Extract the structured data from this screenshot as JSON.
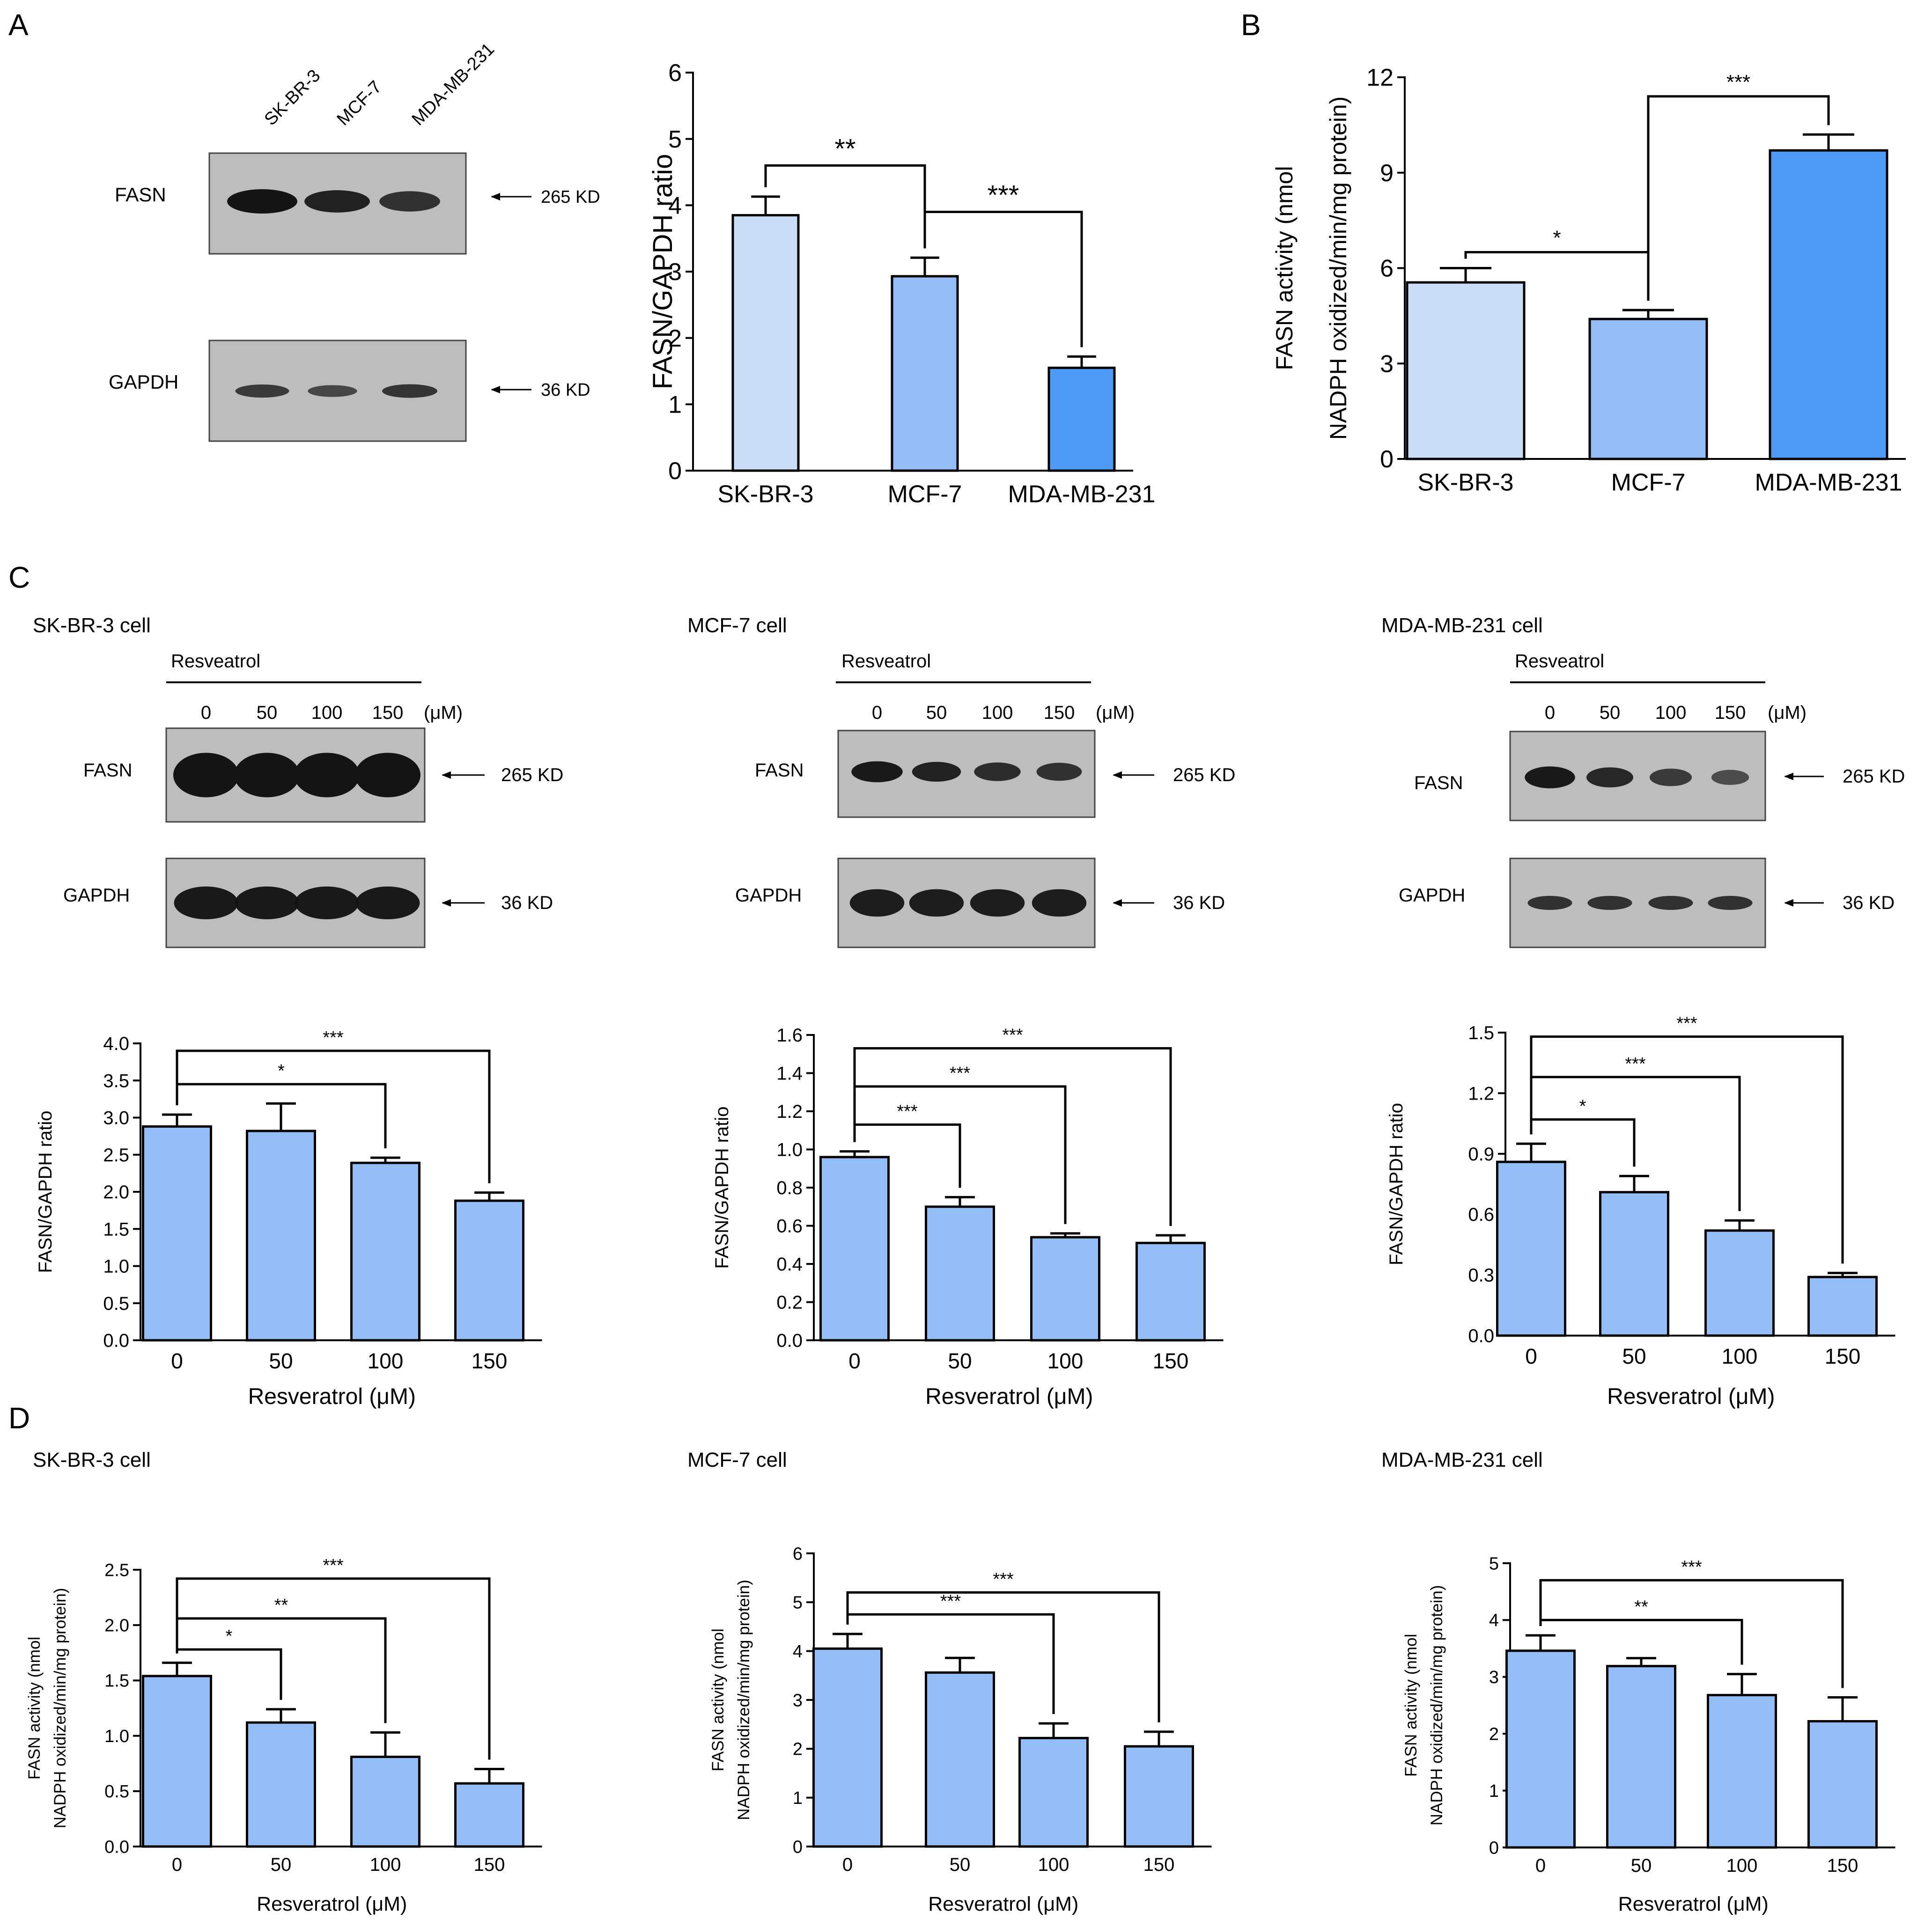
{
  "colors": {
    "bar_light": "#c9ddf7",
    "bar_mid": "#93bdf7",
    "bar_dark": "#4d9bf7",
    "blot_bg": "#bdbdbd",
    "band": "#141414",
    "axis": "#000000"
  },
  "panels": {
    "A": "A",
    "B": "B",
    "C": "C",
    "D": "D"
  },
  "units": {
    "uM": "(μM)"
  },
  "blots": {
    "A": {
      "lanes": [
        "SK-BR-3",
        "MCF-7",
        "MDA-MB-231"
      ],
      "rows": [
        {
          "label": "FASN",
          "marker": "265 KD",
          "intensity": [
            1.0,
            0.85,
            0.7
          ]
        },
        {
          "label": "GAPDH",
          "marker": "36 KD",
          "intensity": [
            0.6,
            0.45,
            0.65
          ]
        }
      ]
    },
    "C": [
      {
        "cell": "SK-BR-3 cell",
        "treatment": "Resveatrol",
        "doses": [
          "0",
          "50",
          "100",
          "150"
        ],
        "rows": [
          {
            "label": "FASN",
            "marker": "265 KD",
            "intensity": [
              1.0,
              1.0,
              1.0,
              1.0
            ]
          },
          {
            "label": "GAPDH",
            "marker": "36 KD",
            "intensity": [
              0.95,
              0.95,
              0.95,
              0.95
            ]
          }
        ]
      },
      {
        "cell": "MCF-7 cell",
        "treatment": "Resveatrol",
        "doses": [
          "0",
          "50",
          "100",
          "150"
        ],
        "rows": [
          {
            "label": "FASN",
            "marker": "265 KD",
            "intensity": [
              0.95,
              0.85,
              0.75,
              0.7
            ]
          },
          {
            "label": "GAPDH",
            "marker": "36 KD",
            "intensity": [
              0.9,
              0.9,
              0.9,
              0.9
            ]
          }
        ]
      },
      {
        "cell": "MDA-MB-231 cell",
        "treatment": "Resveatrol",
        "doses": [
          "0",
          "50",
          "100",
          "150"
        ],
        "rows": [
          {
            "label": "FASN",
            "marker": "265 KD",
            "intensity": [
              0.95,
              0.8,
              0.6,
              0.4
            ]
          },
          {
            "label": "GAPDH",
            "marker": "36 KD",
            "intensity": [
              0.7,
              0.7,
              0.7,
              0.7
            ]
          }
        ]
      }
    ]
  },
  "chart_data": [
    {
      "id": "A-ratio",
      "type": "bar",
      "title": "",
      "xlabel": "",
      "ylabel": "FASN/GAPDH ratio",
      "categories": [
        "SK-BR-3",
        "MCF-7",
        "MDA-MB-231"
      ],
      "values": [
        3.85,
        2.93,
        1.55
      ],
      "errors": [
        0.28,
        0.28,
        0.17
      ],
      "ylim": [
        0,
        6
      ],
      "yticks": [
        "0",
        "1",
        "2",
        "3",
        "4",
        "5",
        "6"
      ],
      "bar_colors": [
        "#c9ddf7",
        "#93bdf7",
        "#4d9bf7"
      ],
      "significance": [
        {
          "from": 0,
          "to": 1,
          "y": 4.6,
          "label": "**"
        },
        {
          "from": 1,
          "to": 2,
          "y": 3.9,
          "label": "***"
        }
      ]
    },
    {
      "id": "B-activity",
      "type": "bar",
      "title": "",
      "xlabel": "",
      "ylabel": [
        "FASN activity (nmol",
        "NADPH oxidized/min/mg protein)"
      ],
      "categories": [
        "SK-BR-3",
        "MCF-7",
        "MDA-MB-231"
      ],
      "values": [
        5.55,
        4.4,
        9.7
      ],
      "errors": [
        0.45,
        0.28,
        0.5
      ],
      "ylim": [
        0,
        12
      ],
      "yticks": [
        "0",
        "3",
        "6",
        "9",
        "12"
      ],
      "bar_colors": [
        "#c9ddf7",
        "#93bdf7",
        "#4d9bf7"
      ],
      "significance": [
        {
          "from": 0,
          "to": 1,
          "y": 6.5,
          "label": "*"
        },
        {
          "from": 1,
          "to": 2,
          "y": 11.4,
          "label": "***"
        }
      ]
    },
    {
      "id": "C-SKBR3",
      "type": "bar",
      "title": "",
      "xlabel": "Resveratrol (μM)",
      "ylabel": "FASN/GAPDH ratio",
      "categories": [
        "0",
        "50",
        "100",
        "150"
      ],
      "values": [
        2.88,
        2.82,
        2.39,
        1.88
      ],
      "errors": [
        0.16,
        0.37,
        0.07,
        0.11
      ],
      "ylim": [
        0,
        4.0
      ],
      "yticks": [
        "0.0",
        "0.5",
        "1.0",
        "1.5",
        "2.0",
        "2.5",
        "3.0",
        "3.5",
        "4.0"
      ],
      "bar_colors": [
        "#93bdf7",
        "#93bdf7",
        "#93bdf7",
        "#93bdf7"
      ],
      "significance": [
        {
          "from": 0,
          "to": 2,
          "y": 3.45,
          "label": "*"
        },
        {
          "from": 0,
          "to": 3,
          "y": 3.9,
          "label": "***"
        }
      ]
    },
    {
      "id": "C-MCF7",
      "type": "bar",
      "title": "",
      "xlabel": "Resveratrol (μM)",
      "ylabel": "FASN/GAPDH ratio",
      "categories": [
        "0",
        "50",
        "100",
        "150"
      ],
      "values": [
        0.96,
        0.7,
        0.54,
        0.51
      ],
      "errors": [
        0.03,
        0.05,
        0.02,
        0.04
      ],
      "ylim": [
        0,
        1.6
      ],
      "yticks": [
        "0.0",
        "0.2",
        "0.4",
        "0.6",
        "0.8",
        "1.0",
        "1.2",
        "1.4",
        "1.6"
      ],
      "bar_colors": [
        "#93bdf7",
        "#93bdf7",
        "#93bdf7",
        "#93bdf7"
      ],
      "significance": [
        {
          "from": 0,
          "to": 1,
          "y": 1.13,
          "label": "***"
        },
        {
          "from": 0,
          "to": 2,
          "y": 1.33,
          "label": "***"
        },
        {
          "from": 0,
          "to": 3,
          "y": 1.53,
          "label": "***"
        }
      ]
    },
    {
      "id": "C-MDA",
      "type": "bar",
      "title": "",
      "xlabel": "Resveratrol (μM)",
      "ylabel": "FASN/GAPDH ratio",
      "categories": [
        "0",
        "50",
        "100",
        "150"
      ],
      "values": [
        0.86,
        0.71,
        0.52,
        0.29
      ],
      "errors": [
        0.09,
        0.08,
        0.05,
        0.02
      ],
      "ylim": [
        0,
        1.5
      ],
      "yticks": [
        "0.0",
        "0.3",
        "0.6",
        "0.9",
        "1.2",
        "1.5"
      ],
      "bar_colors": [
        "#93bdf7",
        "#93bdf7",
        "#93bdf7",
        "#93bdf7"
      ],
      "significance": [
        {
          "from": 0,
          "to": 1,
          "y": 1.07,
          "label": "*"
        },
        {
          "from": 0,
          "to": 2,
          "y": 1.28,
          "label": "***"
        },
        {
          "from": 0,
          "to": 3,
          "y": 1.48,
          "label": "***"
        }
      ]
    },
    {
      "id": "D-SKBR3",
      "type": "bar",
      "title": "",
      "xlabel": "Resveratrol (μM)",
      "ylabel": [
        "FASN activity (nmol",
        "NADPH oxidized/min/mg protein)"
      ],
      "categories": [
        "0",
        "50",
        "100",
        "150"
      ],
      "values": [
        1.54,
        1.12,
        0.81,
        0.57
      ],
      "errors": [
        0.12,
        0.12,
        0.22,
        0.13
      ],
      "ylim": [
        0,
        2.5
      ],
      "yticks": [
        "0.0",
        "0.5",
        "1.0",
        "1.5",
        "2.0",
        "2.5"
      ],
      "bar_colors": [
        "#93bdf7",
        "#93bdf7",
        "#93bdf7",
        "#93bdf7"
      ],
      "significance": [
        {
          "from": 0,
          "to": 1,
          "y": 1.78,
          "label": "*"
        },
        {
          "from": 0,
          "to": 2,
          "y": 2.06,
          "label": "**"
        },
        {
          "from": 0,
          "to": 3,
          "y": 2.42,
          "label": "***"
        }
      ]
    },
    {
      "id": "D-MCF7",
      "type": "bar",
      "title": "",
      "xlabel": "Resveratrol (μM)",
      "ylabel": [
        "FASN activity (nmol",
        "NADPH oxidized/min/mg protein)"
      ],
      "categories": [
        "0",
        "50",
        "100",
        "150"
      ],
      "values": [
        4.05,
        3.56,
        2.22,
        2.05
      ],
      "errors": [
        0.3,
        0.3,
        0.3,
        0.3
      ],
      "ylim": [
        0,
        6
      ],
      "yticks": [
        "0",
        "1",
        "2",
        "3",
        "4",
        "5",
        "6"
      ],
      "bar_colors": [
        "#93bdf7",
        "#93bdf7",
        "#93bdf7",
        "#93bdf7"
      ],
      "significance": [
        {
          "from": 0,
          "to": 2,
          "y": 4.75,
          "label": "***"
        },
        {
          "from": 0,
          "to": 3,
          "y": 5.2,
          "label": "***"
        }
      ]
    },
    {
      "id": "D-MDA",
      "type": "bar",
      "title": "",
      "xlabel": "Resveratrol (μM)",
      "ylabel": [
        "FASN activity (nmol",
        "NADPH oxidized/min/mg protein)"
      ],
      "categories": [
        "0",
        "50",
        "100",
        "150"
      ],
      "values": [
        3.46,
        3.19,
        2.68,
        2.22
      ],
      "errors": [
        0.27,
        0.14,
        0.37,
        0.42
      ],
      "ylim": [
        0,
        5
      ],
      "yticks": [
        "0",
        "1",
        "2",
        "3",
        "4",
        "5"
      ],
      "bar_colors": [
        "#93bdf7",
        "#93bdf7",
        "#93bdf7",
        "#93bdf7"
      ],
      "significance": [
        {
          "from": 0,
          "to": 2,
          "y": 4.0,
          "label": "**"
        },
        {
          "from": 0,
          "to": 3,
          "y": 4.7,
          "label": "***"
        }
      ]
    }
  ]
}
